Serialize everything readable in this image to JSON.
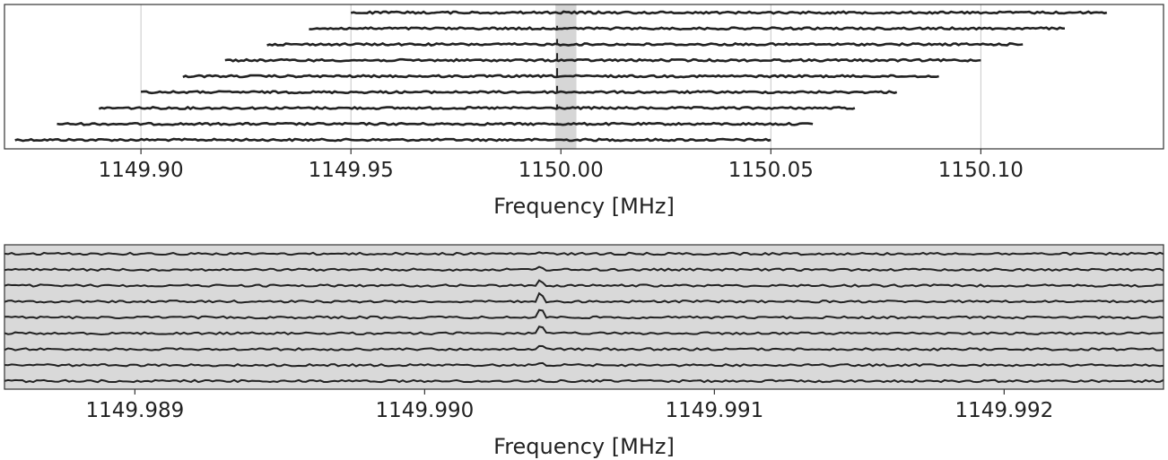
{
  "chart_data": [
    {
      "type": "line",
      "title": "",
      "xlabel": "Frequency [MHz]",
      "ylabel": "",
      "xlim": [
        1149.8675,
        1150.1435
      ],
      "xticks": [
        1149.9,
        1149.95,
        1150.0,
        1150.05,
        1150.1
      ],
      "xtick_labels": [
        "1149.90",
        "1149.95",
        "1150.00",
        "1150.05",
        "1150.10"
      ],
      "grid": "vertical",
      "legend": "none",
      "highlight_band": [
        1149.9987,
        1150.0037
      ],
      "signal_frequency": 1149.9904,
      "series": [
        {
          "x_start": 1149.87,
          "x_end": 1150.05
        },
        {
          "x_start": 1149.88,
          "x_end": 1150.06
        },
        {
          "x_start": 1149.89,
          "x_end": 1150.07
        },
        {
          "x_start": 1149.9,
          "x_end": 1150.08
        },
        {
          "x_start": 1149.91,
          "x_end": 1150.09
        },
        {
          "x_start": 1149.92,
          "x_end": 1150.1
        },
        {
          "x_start": 1149.93,
          "x_end": 1150.11
        },
        {
          "x_start": 1149.94,
          "x_end": 1150.12
        },
        {
          "x_start": 1149.95,
          "x_end": 1150.13
        }
      ],
      "colors": {
        "line": "#222222",
        "band": "#d6d6d6",
        "grid": "#c8c8c8"
      }
    },
    {
      "type": "line",
      "title": "",
      "xlabel": "Frequency [MHz]",
      "ylabel": "",
      "xlim": [
        1149.98855,
        1149.99255
      ],
      "xticks": [
        1149.989,
        1149.99,
        1149.991,
        1149.992
      ],
      "xtick_labels": [
        "1149.989",
        "1149.990",
        "1149.991",
        "1149.992"
      ],
      "grid": "none",
      "legend": "none",
      "background": "#d9d9d9",
      "peak_frequency": 1149.9904,
      "peak_heights": [
        0.1,
        0.3,
        0.6,
        0.9,
        1.0,
        0.8,
        0.5,
        0.2,
        0.05
      ],
      "colors": {
        "line": "#222222"
      }
    }
  ]
}
